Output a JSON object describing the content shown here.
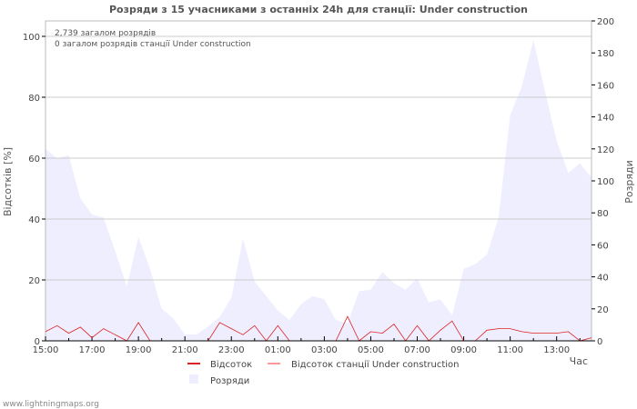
{
  "chart_data": {
    "type": "area",
    "title": "Розряди з 15 учасниками з останніх 24h для станції: Under construction",
    "annotations": [
      "2,739 загалом розрядів",
      "0 загалом розрядів станції Under construction"
    ],
    "xlabel": "Час",
    "ylabel": "Відсотків   [%]",
    "y2label": "Розряди",
    "xticks": [
      "15:00",
      "17:00",
      "19:00",
      "21:00",
      "23:00",
      "01:00",
      "03:00",
      "05:00",
      "07:00",
      "09:00",
      "11:00",
      "13:00"
    ],
    "ylim": [
      0,
      100
    ],
    "yticks": [
      0,
      20,
      40,
      60,
      80,
      100
    ],
    "y2lim": [
      0,
      200
    ],
    "y2ticks": [
      0,
      20,
      40,
      60,
      80,
      100,
      120,
      140,
      160,
      180,
      200
    ],
    "series": [
      {
        "name": "Розряди",
        "axis": "right",
        "color": "#eeeeff",
        "values": [
          120,
          114,
          116,
          89,
          79,
          77,
          56,
          34,
          65,
          45,
          20,
          14,
          4,
          4,
          9,
          15,
          27,
          64,
          37,
          28,
          19,
          13,
          23,
          28,
          26,
          13,
          11,
          31,
          32,
          43,
          36,
          32,
          39,
          24,
          26,
          16,
          45,
          48,
          54,
          77,
          141,
          159,
          188,
          156,
          125,
          105,
          111,
          102
        ]
      },
      {
        "name": "Відсоток",
        "axis": "left",
        "color": "#dd2222",
        "values": [
          3,
          5,
          2.5,
          4.5,
          1,
          4,
          2,
          0,
          6,
          0,
          0,
          0,
          0,
          0,
          0,
          6,
          4,
          2,
          5,
          0,
          5,
          0,
          0,
          0,
          0,
          0,
          8,
          0,
          3,
          2.5,
          5.5,
          0,
          5,
          0,
          3.5,
          6.5,
          0,
          0,
          3.5,
          4,
          4,
          3,
          2.5,
          2.5,
          2.5,
          3,
          0,
          1
        ]
      },
      {
        "name": "Відсоток станції Under construction",
        "axis": "left",
        "color": "#ff9999",
        "values": []
      }
    ],
    "legend": "bottom"
  },
  "footer": "www.lightningmaps.org"
}
